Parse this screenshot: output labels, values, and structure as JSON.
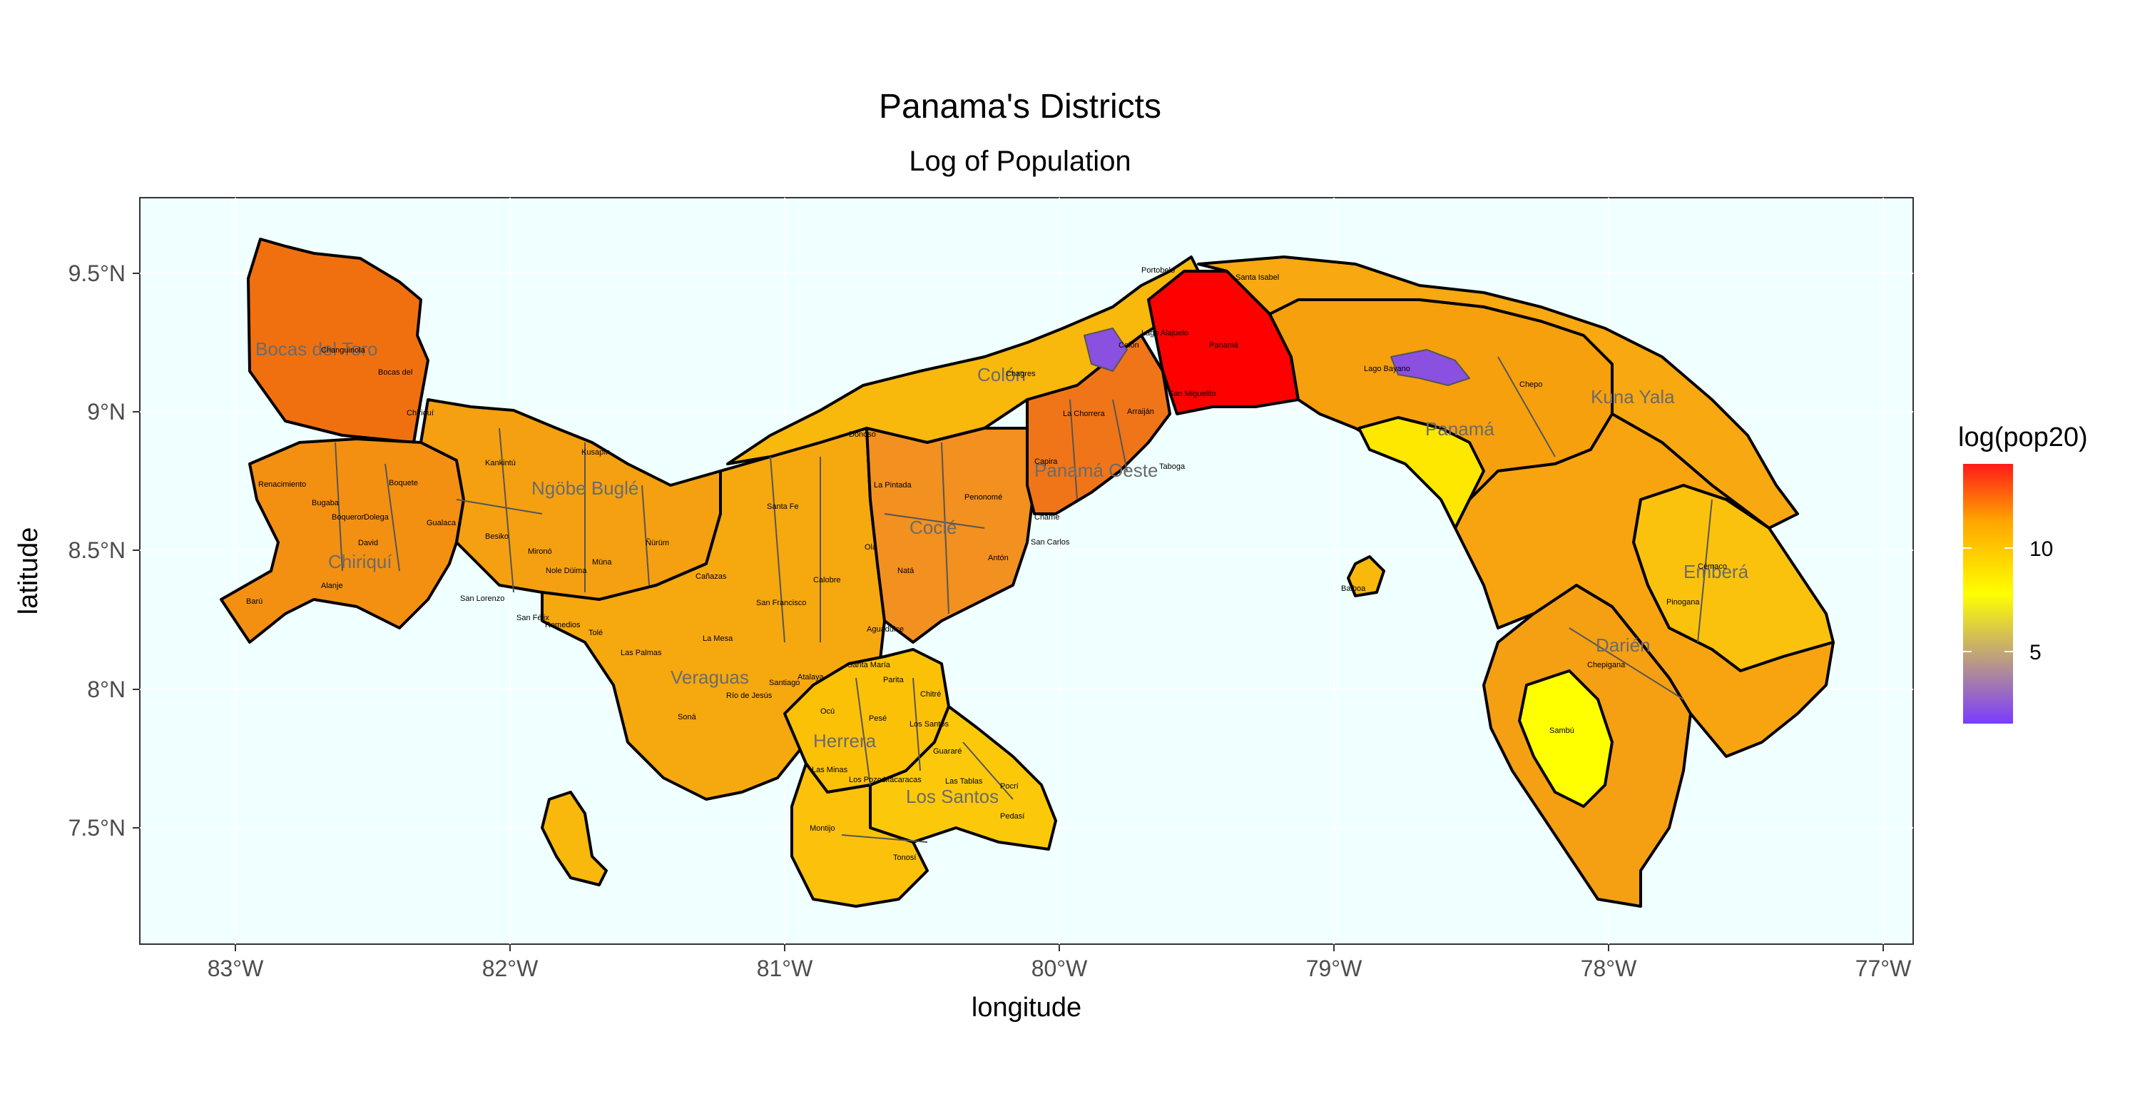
{
  "title": "Panama's Districts",
  "subtitle": "Log of Population",
  "axes": {
    "x_title": "longitude",
    "y_title": "latitude",
    "x_ticks": [
      "83°W",
      "82°W",
      "81°W",
      "80°W",
      "79°W",
      "78°W",
      "77°W"
    ],
    "y_ticks": [
      "9.5°N",
      "9°N",
      "8.5°N",
      "8°N",
      "7.5°N"
    ]
  },
  "legend": {
    "title": "log(pop20)",
    "ticks": [
      "10",
      "5"
    ],
    "colors": {
      "low": "#7a3cff",
      "mid": "#ffff00",
      "high": "#ff1a1a"
    }
  },
  "colors": {
    "ocean": "#f0ffff",
    "border": "#000000",
    "district_border": "#555555"
  },
  "provinces": [
    {
      "name": "Bocas del Toro"
    },
    {
      "name": "Colón"
    },
    {
      "name": "Ngöbe Buglé"
    },
    {
      "name": "Chiriquí"
    },
    {
      "name": "Coclé"
    },
    {
      "name": "Panamá Oeste"
    },
    {
      "name": "Panamá"
    },
    {
      "name": "Kuna Yala"
    },
    {
      "name": "Veraguas"
    },
    {
      "name": "Herrera"
    },
    {
      "name": "Los Santos"
    },
    {
      "name": "Emberá"
    },
    {
      "name": "Darién"
    }
  ],
  "districts": [
    {
      "name": "Changuinola"
    },
    {
      "name": "Bocas del"
    },
    {
      "name": "Chiriquí"
    },
    {
      "name": "Kankintú"
    },
    {
      "name": "Kusapín"
    },
    {
      "name": "Renacimiento"
    },
    {
      "name": "Boquete"
    },
    {
      "name": "Bugaba"
    },
    {
      "name": "Boqueron"
    },
    {
      "name": "Dolega"
    },
    {
      "name": "Gualaca"
    },
    {
      "name": "Besiko"
    },
    {
      "name": "Mironó"
    },
    {
      "name": "Ñürüm"
    },
    {
      "name": "David"
    },
    {
      "name": "Alanje"
    },
    {
      "name": "Barú"
    },
    {
      "name": "Nole Düima"
    },
    {
      "name": "Müna"
    },
    {
      "name": "San Lorenzo"
    },
    {
      "name": "San Félix"
    },
    {
      "name": "Remedios"
    },
    {
      "name": "Tolé"
    },
    {
      "name": "Las Palmas"
    },
    {
      "name": "Cañazas"
    },
    {
      "name": "La Mesa"
    },
    {
      "name": "Soná"
    },
    {
      "name": "Santa Fe"
    },
    {
      "name": "Donoso"
    },
    {
      "name": "Chagres"
    },
    {
      "name": "Colón"
    },
    {
      "name": "Portobelo"
    },
    {
      "name": "Santa Isabel"
    },
    {
      "name": "Lago Alajuelo"
    },
    {
      "name": "Panamá"
    },
    {
      "name": "San Miguelito"
    },
    {
      "name": "Arraiján"
    },
    {
      "name": "La Chorrera"
    },
    {
      "name": "Capira"
    },
    {
      "name": "Chame"
    },
    {
      "name": "San Carlos"
    },
    {
      "name": "Taboga"
    },
    {
      "name": "Lago Bayano"
    },
    {
      "name": "Chepo"
    },
    {
      "name": "La Pintada"
    },
    {
      "name": "Penonomé"
    },
    {
      "name": "Olá"
    },
    {
      "name": "Natá"
    },
    {
      "name": "Antón"
    },
    {
      "name": "Calobre"
    },
    {
      "name": "San Francisco"
    },
    {
      "name": "Aguadulce"
    },
    {
      "name": "Santiago"
    },
    {
      "name": "Atalaya"
    },
    {
      "name": "Santa María"
    },
    {
      "name": "Parita"
    },
    {
      "name": "Chitré"
    },
    {
      "name": "Río de Jesús"
    },
    {
      "name": "Ocú"
    },
    {
      "name": "Pesé"
    },
    {
      "name": "Los Santos"
    },
    {
      "name": "Guararé"
    },
    {
      "name": "Las Minas"
    },
    {
      "name": "Los Pozos"
    },
    {
      "name": "Macaracas"
    },
    {
      "name": "Las Tablas"
    },
    {
      "name": "Pocrí"
    },
    {
      "name": "Pedasí"
    },
    {
      "name": "Montijo"
    },
    {
      "name": "Tonosí"
    },
    {
      "name": "Balboa"
    },
    {
      "name": "Cémaco"
    },
    {
      "name": "Pinogana"
    },
    {
      "name": "Chepigana"
    },
    {
      "name": "Sambú"
    }
  ]
}
